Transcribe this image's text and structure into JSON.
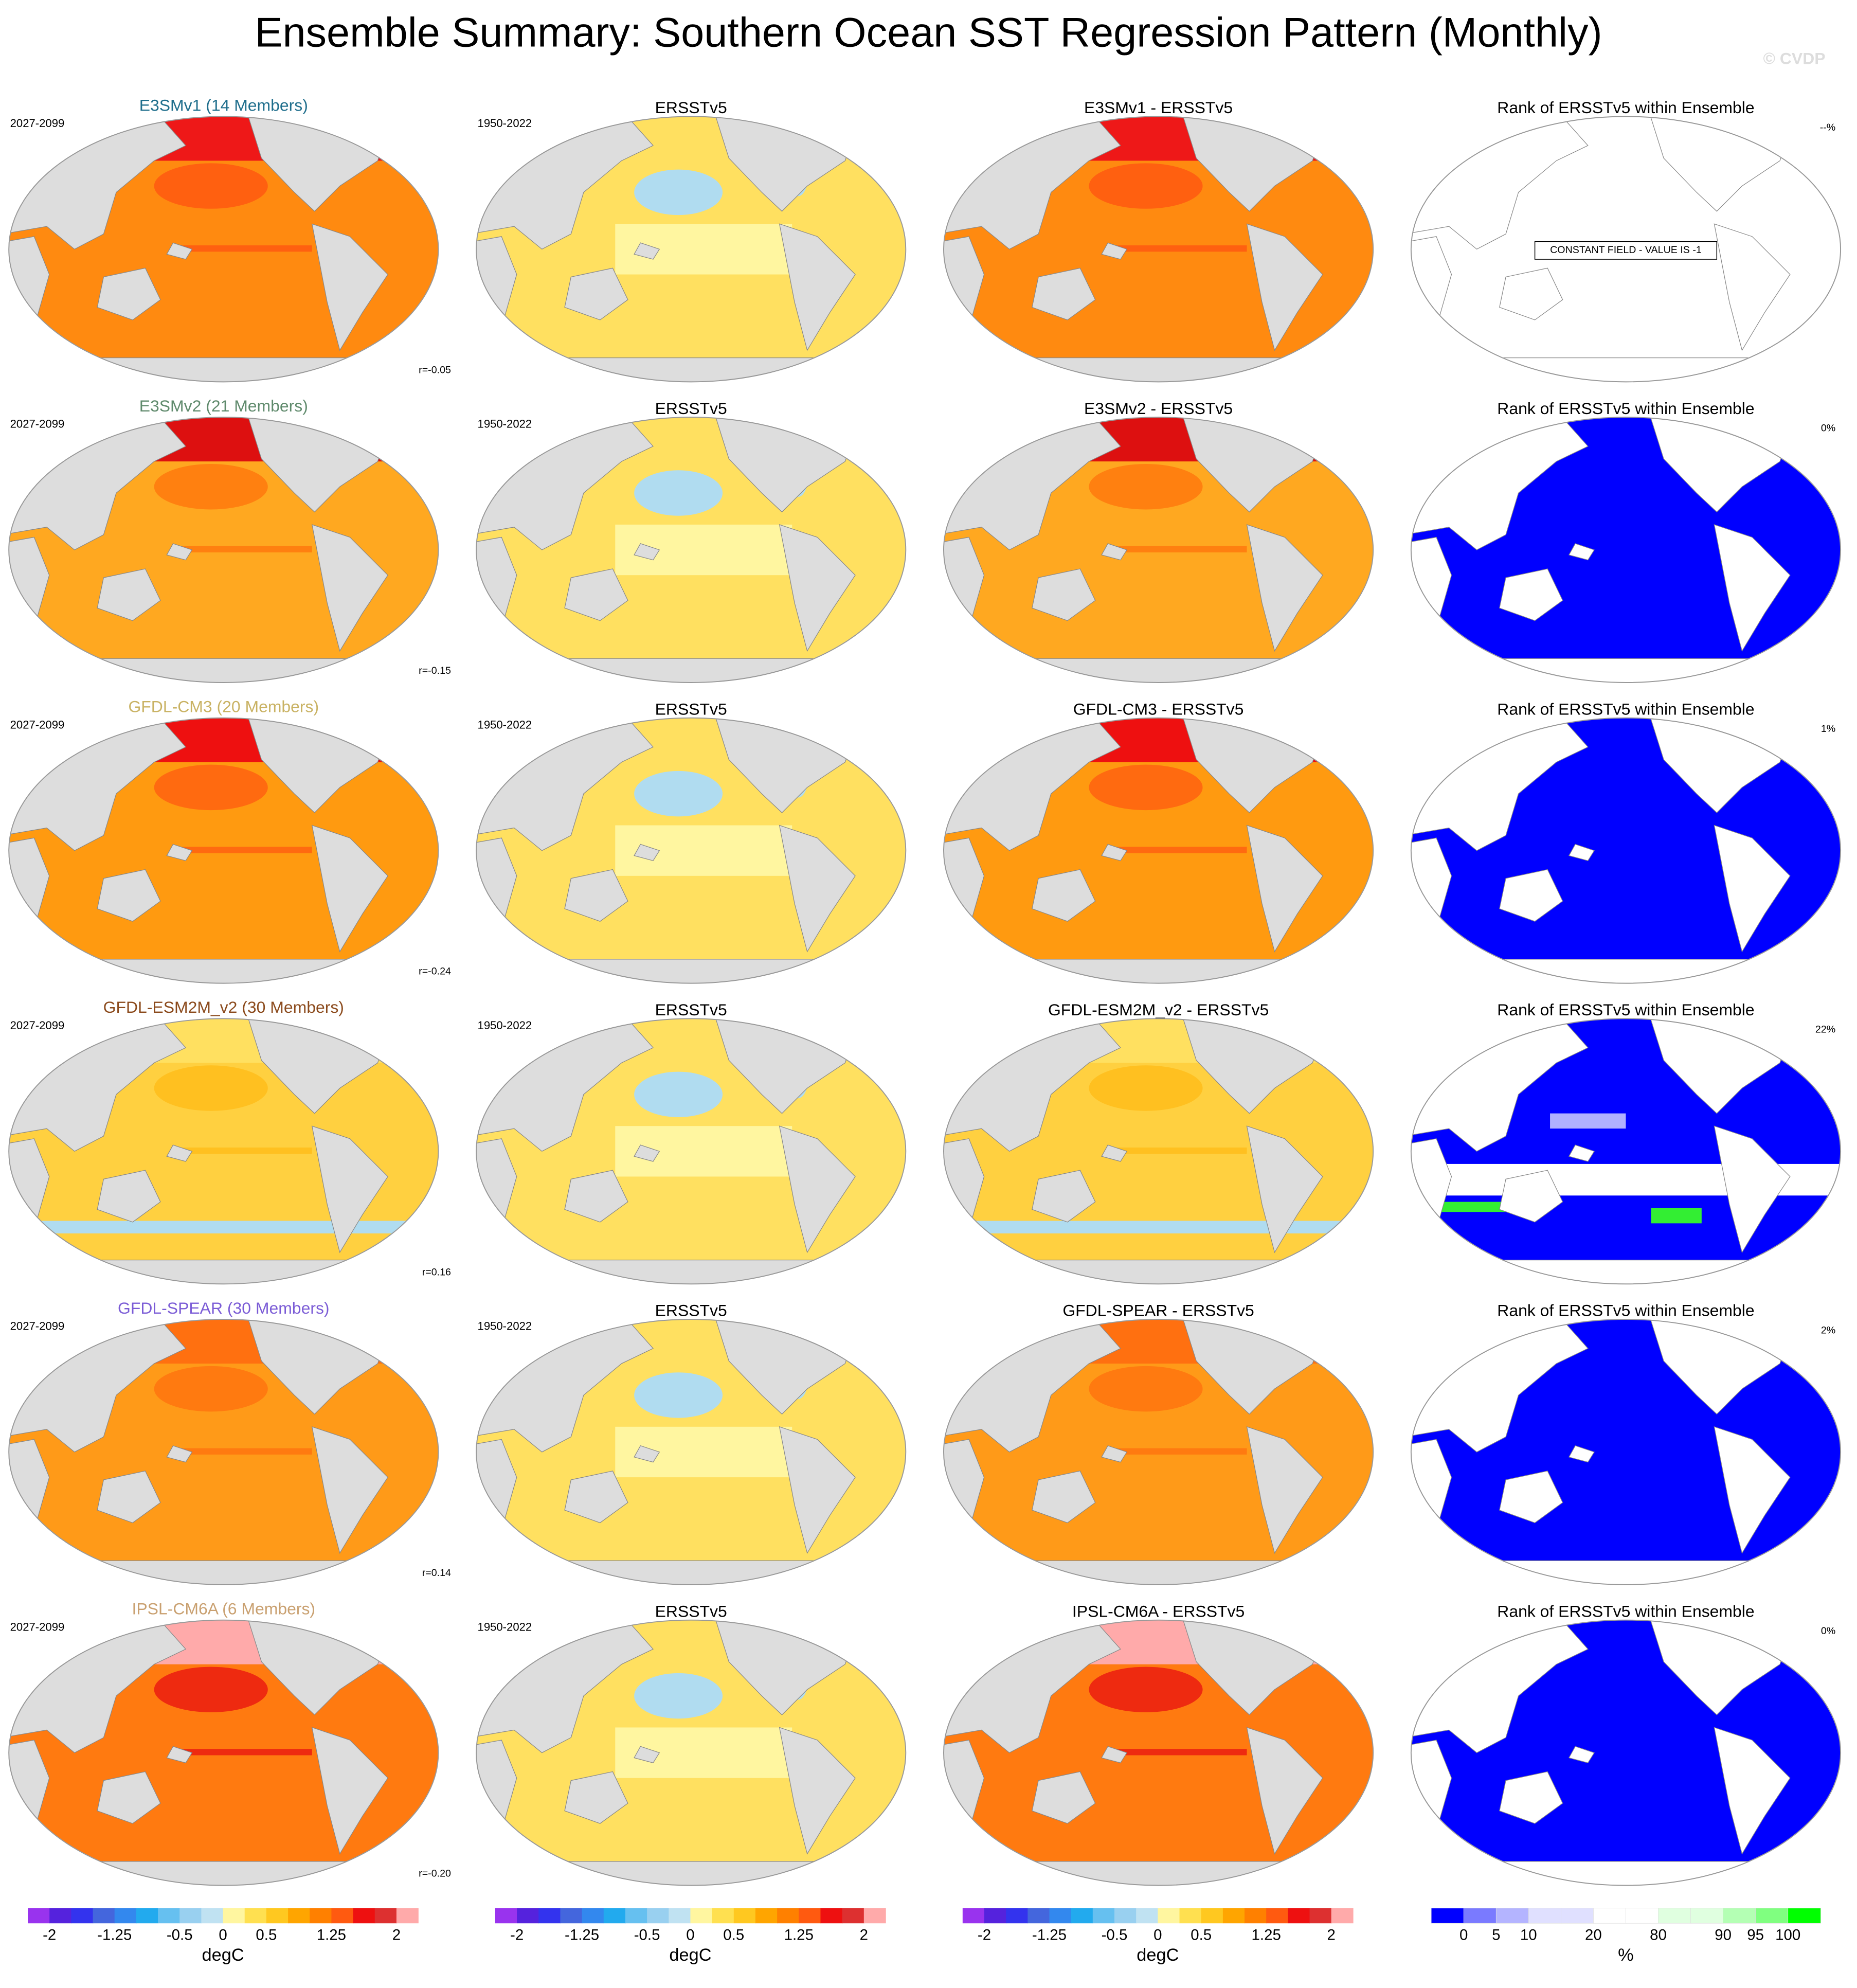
{
  "title": "Ensemble Summary: Southern Ocean SST Regression Pattern (Monthly)",
  "watermark": "© CVDP",
  "rows": [
    {
      "model": "E3SMv1 (14 Members)",
      "model_color": "#1f6e8c",
      "model_period": "2027-2099",
      "r": "r=-0.05",
      "obs": "ERSSTv5",
      "obs_period": "1950-2022",
      "diff": "E3SMv1 - ERSSTv5",
      "rank": "Rank of ERSSTv5 within Ensemble",
      "rank_pct": "--%",
      "rank_note": "CONSTANT FIELD - VALUE IS -1"
    },
    {
      "model": "E3SMv2 (21 Members)",
      "model_color": "#5f8a6c",
      "model_period": "2027-2099",
      "r": "r=-0.15",
      "obs": "ERSSTv5",
      "obs_period": "1950-2022",
      "diff": "E3SMv2 - ERSSTv5",
      "rank": "Rank of ERSSTv5 within Ensemble",
      "rank_pct": "0%"
    },
    {
      "model": "GFDL-CM3 (20 Members)",
      "model_color": "#c9b263",
      "model_period": "2027-2099",
      "r": "r=-0.24",
      "obs": "ERSSTv5",
      "obs_period": "1950-2022",
      "diff": "GFDL-CM3 - ERSSTv5",
      "rank": "Rank of ERSSTv5 within Ensemble",
      "rank_pct": "1%"
    },
    {
      "model": "GFDL-ESM2M_v2 (30 Members)",
      "model_color": "#8b4a1c",
      "model_period": "2027-2099",
      "r": "r=0.16",
      "obs": "ERSSTv5",
      "obs_period": "1950-2022",
      "diff": "GFDL-ESM2M_v2 - ERSSTv5",
      "rank": "Rank of ERSSTv5 within Ensemble",
      "rank_pct": "22%"
    },
    {
      "model": "GFDL-SPEAR (30 Members)",
      "model_color": "#7b5cd6",
      "model_period": "2027-2099",
      "r": "r=0.14",
      "obs": "ERSSTv5",
      "obs_period": "1950-2022",
      "diff": "GFDL-SPEAR - ERSSTv5",
      "rank": "Rank of ERSSTv5 within Ensemble",
      "rank_pct": "2%"
    },
    {
      "model": "IPSL-CM6A (6 Members)",
      "model_color": "#c9a070",
      "model_period": "2027-2099",
      "r": "r=-0.20",
      "obs": "ERSSTv5",
      "obs_period": "1950-2022",
      "diff": "IPSL-CM6A - ERSSTv5",
      "rank": "Rank of ERSSTv5 within Ensemble",
      "rank_pct": "0%"
    }
  ],
  "colorbars": [
    {
      "colors": [
        "#9933ee",
        "#5522dd",
        "#3333ee",
        "#4466dd",
        "#3388ee",
        "#22aaee",
        "#66c0f0",
        "#99d0f0",
        "#c0e2f2",
        "#fff6a0",
        "#ffe050",
        "#ffc820",
        "#ffa500",
        "#ff8000",
        "#ff5a10",
        "#ee1010",
        "#dd3030",
        "#ffaaaa"
      ],
      "lim": [
        -2.25,
        2.25
      ],
      "ticks": [
        -2,
        -1.25,
        -0.5,
        0,
        0.5,
        1.25,
        2
      ],
      "label": "degC"
    },
    {
      "colors": [
        "#9933ee",
        "#5522dd",
        "#3333ee",
        "#4466dd",
        "#3388ee",
        "#22aaee",
        "#66c0f0",
        "#99d0f0",
        "#c0e2f2",
        "#fff6a0",
        "#ffe050",
        "#ffc820",
        "#ffa500",
        "#ff8000",
        "#ff5a10",
        "#ee1010",
        "#dd3030",
        "#ffaaaa"
      ],
      "lim": [
        -2.25,
        2.25
      ],
      "ticks": [
        -2,
        -1.25,
        -0.5,
        0,
        0.5,
        1.25,
        2
      ],
      "label": "degC"
    },
    {
      "colors": [
        "#9933ee",
        "#5522dd",
        "#3333ee",
        "#4466dd",
        "#3388ee",
        "#22aaee",
        "#66c0f0",
        "#99d0f0",
        "#c0e2f2",
        "#fff6a0",
        "#ffe050",
        "#ffc820",
        "#ffa500",
        "#ff8000",
        "#ff5a10",
        "#ee1010",
        "#dd3030",
        "#ffaaaa"
      ],
      "lim": [
        -2.25,
        2.25
      ],
      "ticks": [
        -2,
        -1.25,
        -0.5,
        0,
        0.5,
        1.25,
        2
      ],
      "label": "degC"
    },
    {
      "colors": [
        "#0000ff",
        "#7a7aff",
        "#b4b4ff",
        "#e0e0ff",
        "#e0e0ff",
        "#ffffff",
        "#ffffff",
        "#e0ffe0",
        "#e0ffe0",
        "#b4ffb4",
        "#80ff80",
        "#00ff00"
      ],
      "ticks": [
        0,
        5,
        10,
        20,
        80,
        90,
        95,
        100
      ],
      "label": "%"
    }
  ]
}
